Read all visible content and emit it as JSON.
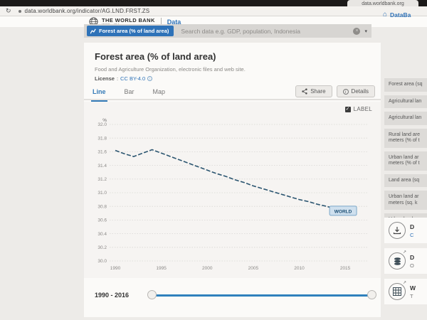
{
  "browser": {
    "tab_title": "data.worldbank.org",
    "url": "data.worldbank.org/indicator/AG.LND.FRST.ZS"
  },
  "site_header": {
    "logo_title": "THE WORLD BANK",
    "logo_subtitle": "IBRD - IDA",
    "logo_data": "Data",
    "nav_link": "DataBa"
  },
  "search": {
    "chip_label": "Forest area (% of land area)",
    "placeholder": "Search data e.g. GDP, population, Indonesia"
  },
  "page": {
    "title": "Forest area (% of land area)",
    "source": "Food and Agriculture Organization, electronic files and web site.",
    "license_label": "License",
    "license_separator": ":",
    "license_value": "CC BY-4.0"
  },
  "toolbar": {
    "tabs": [
      {
        "label": "Line",
        "active": true
      },
      {
        "label": "Bar",
        "active": false
      },
      {
        "label": "Map",
        "active": false
      }
    ],
    "share_label": "Share",
    "details_label": "Details",
    "label_checkbox": "LABEL"
  },
  "chart_data": {
    "type": "line",
    "title": "Forest area (% of land area)",
    "unit_label": "%",
    "x": [
      1990,
      1991,
      1992,
      1993,
      1994,
      1995,
      1996,
      1997,
      1998,
      1999,
      2000,
      2001,
      2002,
      2003,
      2004,
      2005,
      2006,
      2007,
      2008,
      2009,
      2010,
      2011,
      2012,
      2013,
      2014,
      2015,
      2016
    ],
    "series": [
      {
        "name": "WORLD",
        "values": [
          31.62,
          31.57,
          31.53,
          31.58,
          31.63,
          31.58,
          31.53,
          31.48,
          31.43,
          31.38,
          31.33,
          31.28,
          31.24,
          31.19,
          31.15,
          31.1,
          31.06,
          31.02,
          30.98,
          30.94,
          30.9,
          30.87,
          30.83,
          30.8,
          30.76,
          30.73,
          30.7
        ]
      }
    ],
    "end_label": "WORLD",
    "xticks": [
      1990,
      1995,
      2000,
      2005,
      2010,
      2015
    ],
    "yticks": [
      32.0,
      31.8,
      31.6,
      31.4,
      31.2,
      31.0,
      30.8,
      30.6,
      30.4,
      30.2,
      30.0
    ],
    "xlim": [
      1990,
      2016
    ],
    "ylim": [
      30.0,
      32.0
    ],
    "grid": true,
    "legend_position": "end-of-line",
    "line_color": "#2b5570",
    "label_box_fill": "#cfe0ee",
    "label_box_border": "#7ba7c9"
  },
  "range_slider": {
    "label": "1990 - 2016",
    "start": 1990,
    "end": 2016
  },
  "sidebar": {
    "items": [
      {
        "line1": "Forest area (sq"
      },
      {
        "line1": "Agricultural lan"
      },
      {
        "line1": "Agricultural lan"
      },
      {
        "line1": "Rural land are",
        "line2": "meters (% of t"
      },
      {
        "line1": "Urban land ar",
        "line2": "meters (% of t"
      },
      {
        "line1": "Land area (sq"
      },
      {
        "line1": "Urban land ar",
        "line2": "meters (sq. k"
      },
      {
        "line1": "Urban land ar"
      }
    ],
    "tools": [
      {
        "icon": "download-icon",
        "title": "D",
        "sub": "C",
        "sub_is_link": true,
        "external": false
      },
      {
        "icon": "database-icon",
        "title": "D",
        "sub": "O",
        "sub_is_link": false,
        "external": true
      },
      {
        "icon": "table-icon",
        "title": "W",
        "sub": "T",
        "sub_is_link": false,
        "external": true
      }
    ]
  },
  "icons": {
    "reload": "↻",
    "caret": "▾",
    "check": "✓",
    "clear": "×",
    "home": "⌂",
    "external": "↗",
    "info_dot": "i"
  }
}
